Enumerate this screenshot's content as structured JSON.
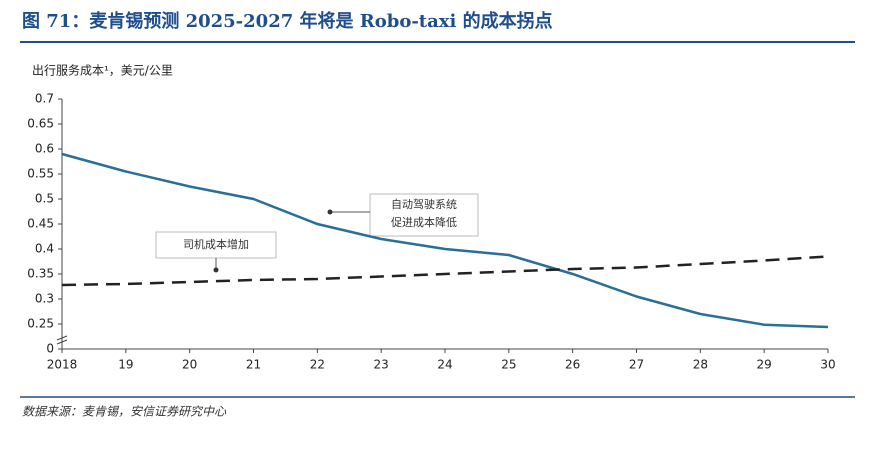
{
  "chart_data": {
    "type": "line",
    "title": "图 71：麦肯锡预测 2025-2027 年将是 Robo-taxi 的成本拐点",
    "y_label": "出行服务成本¹，美元/公里",
    "source": "数据来源：麦肯锡，安信证券研究中心",
    "categories": [
      "2018",
      "19",
      "20",
      "21",
      "22",
      "23",
      "24",
      "25",
      "26",
      "27",
      "28",
      "29",
      "30"
    ],
    "series": [
      {
        "color": "#2a6f97",
        "dash": false,
        "values": [
          0.59,
          0.555,
          0.525,
          0.5,
          0.45,
          0.42,
          0.4,
          0.388,
          0.35,
          0.305,
          0.27,
          0.243,
          0.22
        ]
      },
      {
        "color": "#222222",
        "dash": true,
        "values": [
          0.328,
          0.33,
          0.334,
          0.338,
          0.34,
          0.345,
          0.35,
          0.355,
          0.36,
          0.363,
          0.37,
          0.377,
          0.385
        ]
      }
    ],
    "annotations": [
      {
        "lines": [
          "自动驾驶系统",
          "促进成本降低"
        ]
      },
      {
        "lines": [
          "司机成本增加"
        ]
      }
    ],
    "ylim": [
      0,
      0.7
    ],
    "y_break": true,
    "yticks": [
      0,
      0.25,
      0.3,
      0.35,
      0.4,
      0.45,
      0.5,
      0.55,
      0.6,
      0.65,
      0.7
    ]
  }
}
